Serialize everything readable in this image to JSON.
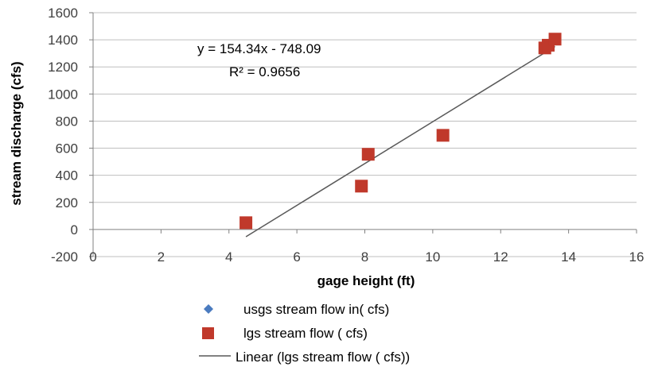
{
  "chart_data": {
    "type": "scatter",
    "xlabel": "gage height (ft)",
    "ylabel": "stream discharge  (cfs)",
    "xlim": [
      0,
      16
    ],
    "ylim": [
      -200,
      1600
    ],
    "x_ticks": [
      0,
      2,
      4,
      6,
      8,
      10,
      12,
      14,
      16
    ],
    "y_ticks": [
      -200,
      0,
      200,
      400,
      600,
      800,
      1000,
      1200,
      1400,
      1600
    ],
    "grid": "horizontal",
    "legend_position": "bottom",
    "series": [
      {
        "name": "usgs stream flow in( cfs)",
        "marker": "diamond",
        "color": "#4a7bbf",
        "points": []
      },
      {
        "name": "lgs stream flow ( cfs)",
        "marker": "square",
        "color": "#c0392b",
        "points": [
          {
            "x": 4.5,
            "y": 50
          },
          {
            "x": 7.9,
            "y": 320
          },
          {
            "x": 8.1,
            "y": 555
          },
          {
            "x": 10.3,
            "y": 695
          },
          {
            "x": 13.3,
            "y": 1340
          },
          {
            "x": 13.4,
            "y": 1360
          },
          {
            "x": 13.6,
            "y": 1405
          }
        ]
      }
    ],
    "trendline": {
      "name": "Linear (lgs stream flow ( cfs))",
      "color": "#595959",
      "slope": 154.34,
      "intercept": -748.09,
      "x_range": [
        4.5,
        13.6
      ],
      "equation": "y = 154.34x - 748.09",
      "r_squared": "R² = 0.9656"
    }
  }
}
